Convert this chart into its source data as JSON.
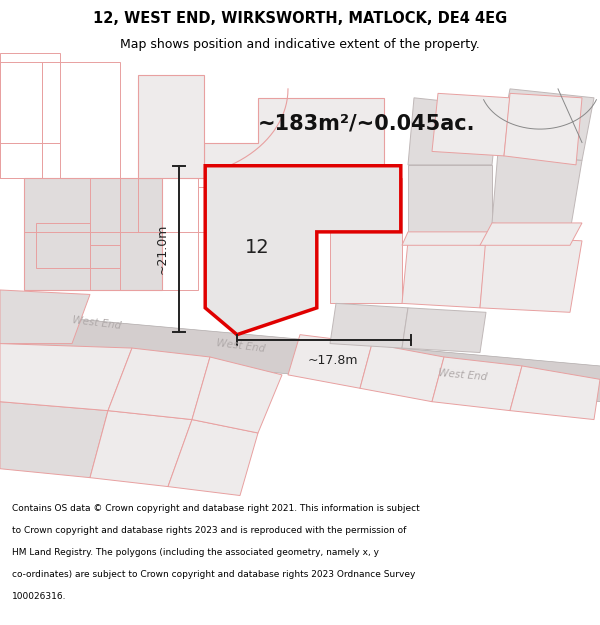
{
  "title_line1": "12, WEST END, WIRKSWORTH, MATLOCK, DE4 4EG",
  "title_line2": "Map shows position and indicative extent of the property.",
  "area_label": "~183m²/~0.045ac.",
  "number_label": "12",
  "dim_height": "~21.0m",
  "dim_width": "~17.8m",
  "footer_lines": [
    "Contains OS data © Crown copyright and database right 2021. This information is subject",
    "to Crown copyright and database rights 2023 and is reproduced with the permission of",
    "HM Land Registry. The polygons (including the associated geometry, namely x, y",
    "co-ordinates) are subject to Crown copyright and database rights 2023 Ordnance Survey",
    "100026316."
  ],
  "bg_color": "#ffffff",
  "map_bg": "#ffffff",
  "road_fill": "#d4cece",
  "road_stroke": "#b8b2b2",
  "building_fill": "#e0dcdc",
  "building_stroke": "#c0b8b8",
  "cadastral_fill": "#eeebeb",
  "cadastral_stroke": "#e8a0a0",
  "highlight_fill": "#e8e6e6",
  "highlight_stroke": "#e00000",
  "dim_color": "#222222",
  "road_label_color": "#b0aaaa",
  "title_color": "#000000",
  "footer_color": "#000000",
  "title_fontsize": 10.5,
  "subtitle_fontsize": 9.0,
  "area_fontsize": 15,
  "number_fontsize": 14,
  "dim_fontsize": 9,
  "road_label_fontsize": 7.5,
  "footer_fontsize": 6.5
}
